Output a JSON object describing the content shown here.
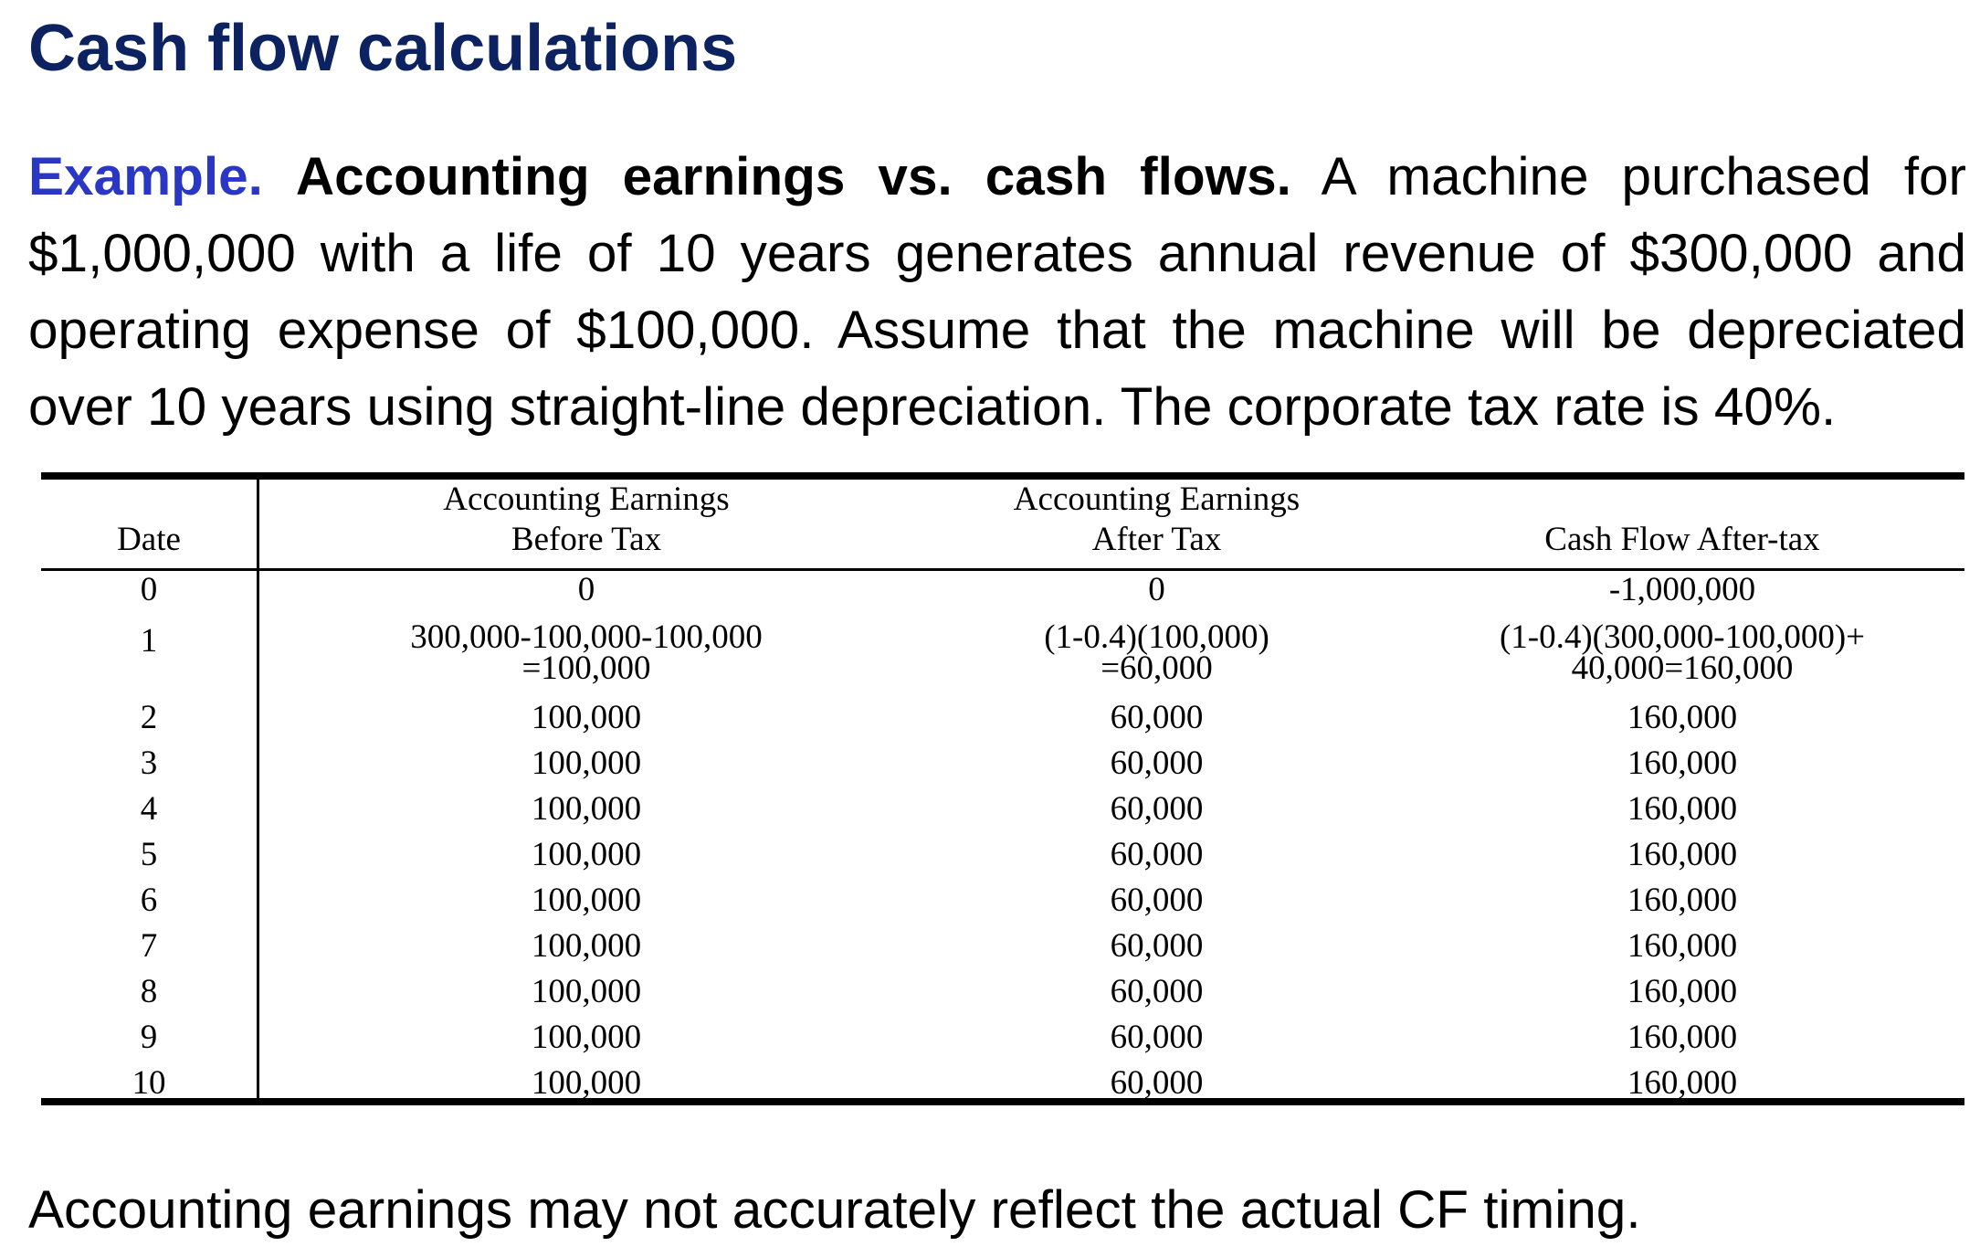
{
  "title": "Cash flow calculations",
  "example": {
    "label": "Example.",
    "heading": "Accounting earnings vs. cash flows.",
    "text": " A machine purchased for $1,000,000 with a life of 10 years generates annual revenue of $300,000 and operating expense of $100,000. Assume that the machine will be depreciated over 10 years using straight-line depreciation.  The corporate tax rate is 40%."
  },
  "table": {
    "headers": {
      "date": "Date",
      "before_tax": [
        "Accounting Earnings",
        "Before Tax"
      ],
      "after_tax": [
        "Accounting Earnings",
        "After Tax"
      ],
      "cash_flow": "Cash Flow After-tax"
    },
    "rows": [
      {
        "date": "0",
        "before_tax": [
          "0"
        ],
        "after_tax": [
          "0"
        ],
        "cash_flow": [
          "-1,000,000"
        ]
      },
      {
        "date": "1",
        "before_tax": [
          "300,000-100,000-100,000",
          "=100,000"
        ],
        "after_tax": [
          "(1-0.4)(100,000)",
          "=60,000"
        ],
        "cash_flow": [
          "(1-0.4)(300,000-100,000)+",
          "40,000=160,000"
        ]
      },
      {
        "date": "2",
        "before_tax": [
          "100,000"
        ],
        "after_tax": [
          "60,000"
        ],
        "cash_flow": [
          "160,000"
        ]
      },
      {
        "date": "3",
        "before_tax": [
          "100,000"
        ],
        "after_tax": [
          "60,000"
        ],
        "cash_flow": [
          "160,000"
        ]
      },
      {
        "date": "4",
        "before_tax": [
          "100,000"
        ],
        "after_tax": [
          "60,000"
        ],
        "cash_flow": [
          "160,000"
        ]
      },
      {
        "date": "5",
        "before_tax": [
          "100,000"
        ],
        "after_tax": [
          "60,000"
        ],
        "cash_flow": [
          "160,000"
        ]
      },
      {
        "date": "6",
        "before_tax": [
          "100,000"
        ],
        "after_tax": [
          "60,000"
        ],
        "cash_flow": [
          "160,000"
        ]
      },
      {
        "date": "7",
        "before_tax": [
          "100,000"
        ],
        "after_tax": [
          "60,000"
        ],
        "cash_flow": [
          "160,000"
        ]
      },
      {
        "date": "8",
        "before_tax": [
          "100,000"
        ],
        "after_tax": [
          "60,000"
        ],
        "cash_flow": [
          "160,000"
        ]
      },
      {
        "date": "9",
        "before_tax": [
          "100,000"
        ],
        "after_tax": [
          "60,000"
        ],
        "cash_flow": [
          "160,000"
        ]
      },
      {
        "date": "10",
        "before_tax": [
          "100,000"
        ],
        "after_tax": [
          "60,000"
        ],
        "cash_flow": [
          "160,000"
        ]
      }
    ]
  },
  "footer": "Accounting earnings may not accurately reflect the actual CF timing.",
  "colors": {
    "title": "#0d2260",
    "example_label": "#2a37c4",
    "text": "#000000"
  }
}
